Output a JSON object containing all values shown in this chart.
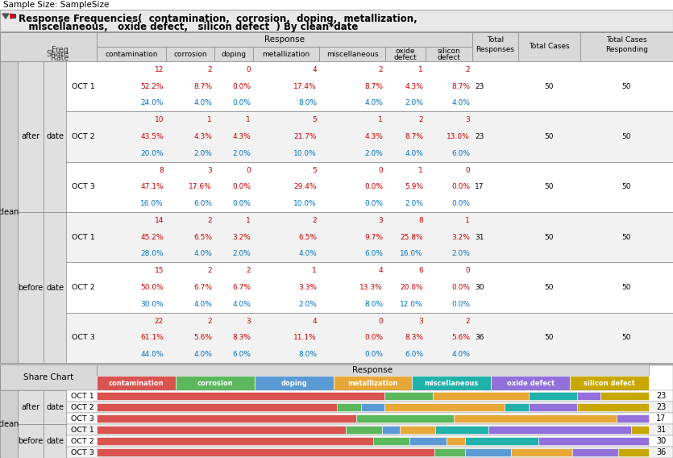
{
  "title_line1": "Sample Size: SampleSize",
  "title_line2": "Response Frequencies(  contamination,  corrosion,  doping,  metallization,",
  "title_line3": "   miscellaneous,   oxide defect,   silicon defect  ) By clean*date",
  "rows": [
    {
      "oct": "OCT 1",
      "group": "after",
      "freq": [
        12,
        2,
        0,
        4,
        2,
        1,
        2
      ],
      "share": [
        "52.2%",
        "8.7%",
        "0.0%",
        "17.4%",
        "8.7%",
        "4.3%",
        "8.7%"
      ],
      "rate": [
        "24.0%",
        "4.0%",
        "0.0%",
        "8.0%",
        "4.0%",
        "2.0%",
        "4.0%"
      ],
      "total_resp": 23,
      "total_cases": 50,
      "total_resp2": 50
    },
    {
      "oct": "OCT 2",
      "group": "after",
      "freq": [
        10,
        1,
        1,
        5,
        1,
        2,
        3
      ],
      "share": [
        "43.5%",
        "4.3%",
        "4.3%",
        "21.7%",
        "4.3%",
        "8.7%",
        "13.0%"
      ],
      "rate": [
        "20.0%",
        "2.0%",
        "2.0%",
        "10.0%",
        "2.0%",
        "4.0%",
        "6.0%"
      ],
      "total_resp": 23,
      "total_cases": 50,
      "total_resp2": 50
    },
    {
      "oct": "OCT 3",
      "group": "after",
      "freq": [
        8,
        3,
        0,
        5,
        0,
        1,
        0
      ],
      "share": [
        "47.1%",
        "17.6%",
        "0.0%",
        "29.4%",
        "0.0%",
        "5.9%",
        "0.0%"
      ],
      "rate": [
        "16.0%",
        "6.0%",
        "0.0%",
        "10.0%",
        "0.0%",
        "2.0%",
        "0.0%"
      ],
      "total_resp": 17,
      "total_cases": 50,
      "total_resp2": 50
    },
    {
      "oct": "OCT 1",
      "group": "before",
      "freq": [
        14,
        2,
        1,
        2,
        3,
        8,
        1
      ],
      "share": [
        "45.2%",
        "6.5%",
        "3.2%",
        "6.5%",
        "9.7%",
        "25.8%",
        "3.2%"
      ],
      "rate": [
        "28.0%",
        "4.0%",
        "2.0%",
        "4.0%",
        "6.0%",
        "16.0%",
        "2.0%"
      ],
      "total_resp": 31,
      "total_cases": 50,
      "total_resp2": 50
    },
    {
      "oct": "OCT 2",
      "group": "before",
      "freq": [
        15,
        2,
        2,
        1,
        4,
        6,
        0
      ],
      "share": [
        "50.0%",
        "6.7%",
        "6.7%",
        "3.3%",
        "13.3%",
        "20.0%",
        "0.0%"
      ],
      "rate": [
        "30.0%",
        "4.0%",
        "4.0%",
        "2.0%",
        "8.0%",
        "12.0%",
        "0.0%"
      ],
      "total_resp": 30,
      "total_cases": 50,
      "total_resp2": 50
    },
    {
      "oct": "OCT 3",
      "group": "before",
      "freq": [
        22,
        2,
        3,
        4,
        0,
        3,
        2
      ],
      "share": [
        "61.1%",
        "5.6%",
        "8.3%",
        "11.1%",
        "0.0%",
        "8.3%",
        "5.6%"
      ],
      "rate": [
        "44.0%",
        "4.0%",
        "6.0%",
        "8.0%",
        "0.0%",
        "6.0%",
        "4.0%"
      ],
      "total_resp": 36,
      "total_cases": 50,
      "total_resp2": 50
    }
  ],
  "bar_colors": [
    "#d9534f",
    "#5cb85c",
    "#5b9bd5",
    "#e8a838",
    "#20b2aa",
    "#9370db",
    "#c8a800"
  ],
  "bar_col_names": [
    "contamination",
    "corrosion",
    "doping",
    "metallization",
    "miscellaneous",
    "oxide defect",
    "silicon defect"
  ],
  "col_names": [
    "contamination",
    "corrosion",
    "doping",
    "metallization",
    "miscellaneous",
    "oxide defect",
    "silicon defect"
  ],
  "bg_gray": "#d9d9d9",
  "bg_white": "#ffffff",
  "bg_alt": "#f2f2f2",
  "border_color": "#999999",
  "freq_color": "#cc0000",
  "share_color": "#cc0000",
  "rate_color": "#0070c0"
}
